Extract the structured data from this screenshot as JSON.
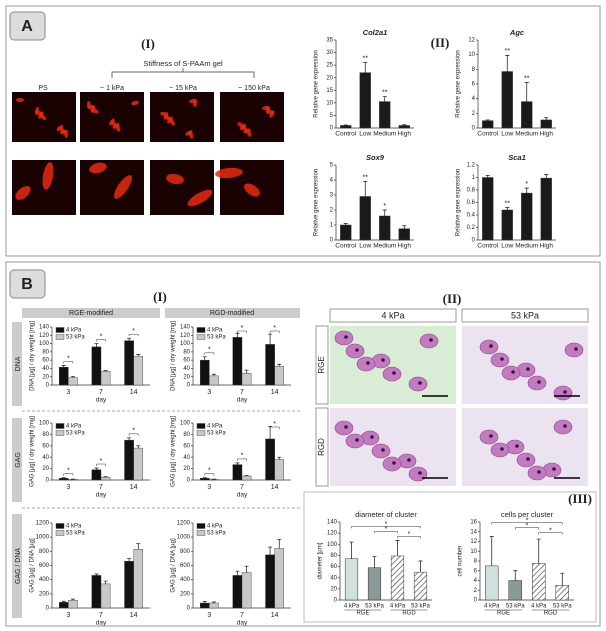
{
  "panels": {
    "A": {
      "label": "A",
      "part1": "(I)",
      "gel_title": "Stiffness of S-PAAm gel",
      "image_labels": [
        "PS",
        "~ 1 kPa",
        "~ 15 kPa",
        "~ 150 kPa"
      ],
      "part2": "(II)"
    },
    "B": {
      "label": "B",
      "part1": "(I)",
      "columns": [
        "RGE-modified",
        "RGD-modified"
      ],
      "rows": [
        "DNA",
        "GAG",
        "GAG / DNA"
      ],
      "part2": "(II)",
      "image_columns": [
        "4 kPa",
        "53 kPa"
      ],
      "image_rows": [
        "RGE",
        "RGD"
      ],
      "part3": "(III)"
    }
  },
  "chart_data": [
    {
      "type": "bar",
      "title": "Col2a1",
      "ylabel": "Relative gene expression",
      "categories": [
        "Control",
        "Low",
        "Medium",
        "High"
      ],
      "values": [
        1,
        22,
        10.5,
        1
      ],
      "errors": [
        0.2,
        4,
        2,
        0.3
      ],
      "annotations": [
        null,
        "**",
        "**",
        null
      ],
      "color": "#1a1a1a",
      "ylim": [
        0,
        35
      ],
      "yticks": [
        0,
        5,
        10,
        15,
        20,
        25,
        30,
        35
      ]
    },
    {
      "type": "bar",
      "title": "Agc",
      "ylabel": "Relative gene expression",
      "categories": [
        "Control",
        "Low",
        "Medium",
        "High"
      ],
      "values": [
        1,
        7.7,
        3.6,
        1.1
      ],
      "errors": [
        0.1,
        2.2,
        2.6,
        0.3
      ],
      "annotations": [
        null,
        "**",
        "**",
        null
      ],
      "color": "#1a1a1a",
      "ylim": [
        0,
        12
      ],
      "yticks": [
        0,
        2,
        4,
        6,
        8,
        10,
        12
      ]
    },
    {
      "type": "bar",
      "title": "Sox9",
      "ylabel": "Relative gene expression",
      "categories": [
        "Control",
        "Low",
        "Medium",
        "High"
      ],
      "values": [
        1,
        2.9,
        1.6,
        0.75
      ],
      "errors": [
        0.1,
        1,
        0.4,
        0.2
      ],
      "annotations": [
        null,
        "**",
        "*",
        null
      ],
      "color": "#1a1a1a",
      "ylim": [
        0,
        5
      ],
      "yticks": [
        0,
        1,
        2,
        3,
        4,
        5
      ]
    },
    {
      "type": "bar",
      "title": "Sca1",
      "ylabel": "Relative gene expression",
      "categories": [
        "Control",
        "Low",
        "Medium",
        "High"
      ],
      "values": [
        1,
        0.48,
        0.75,
        0.99
      ],
      "errors": [
        0.03,
        0.04,
        0.08,
        0.06
      ],
      "annotations": [
        null,
        "**",
        "*",
        null
      ],
      "color": "#1a1a1a",
      "ylim": [
        0,
        1.2
      ],
      "yticks": [
        0,
        0.2,
        0.4,
        0.6,
        0.8,
        1,
        1.2
      ]
    },
    {
      "type": "grouped_bar",
      "ylabel": "DNA [µg] / dry weight [mg]",
      "xlabel": "day",
      "categories": [
        "3",
        "7",
        "14"
      ],
      "series": [
        {
          "name": "4 kPa",
          "color": "#111111",
          "values": [
            43,
            92,
            107
          ],
          "errors": [
            4,
            8,
            6
          ]
        },
        {
          "name": "53 kPa",
          "color": "#c8c8c8",
          "values": [
            18,
            33,
            69
          ],
          "errors": [
            3,
            2,
            5
          ]
        }
      ],
      "significance": [
        "*",
        "*",
        "*"
      ],
      "ylim": [
        0,
        140
      ],
      "yticks": [
        0,
        20,
        40,
        60,
        80,
        100,
        120,
        140
      ]
    },
    {
      "type": "grouped_bar",
      "ylabel": "DNA [µg] / dry weight [mg]",
      "xlabel": "day",
      "categories": [
        "3",
        "7",
        "14"
      ],
      "series": [
        {
          "name": "4 kPa",
          "color": "#111111",
          "values": [
            60,
            115,
            98
          ],
          "errors": [
            8,
            10,
            25
          ]
        },
        {
          "name": "53 kPa",
          "color": "#c8c8c8",
          "values": [
            22,
            28,
            45
          ],
          "errors": [
            4,
            8,
            5
          ]
        }
      ],
      "significance": [
        "*",
        "*",
        "*"
      ],
      "ylim": [
        0,
        140
      ],
      "yticks": [
        0,
        20,
        40,
        60,
        80,
        100,
        120,
        140
      ]
    },
    {
      "type": "grouped_bar",
      "ylabel": "GAG [µg] / dry weight [mg]",
      "xlabel": "day",
      "categories": [
        "3",
        "7",
        "14"
      ],
      "series": [
        {
          "name": "4 kPa",
          "color": "#111111",
          "values": [
            3,
            18,
            70
          ],
          "errors": [
            1,
            3,
            4
          ]
        },
        {
          "name": "53 kPa",
          "color": "#c8c8c8",
          "values": [
            1,
            5,
            56
          ],
          "errors": [
            0.5,
            1,
            4
          ]
        }
      ],
      "significance": [
        "*",
        "*",
        "*"
      ],
      "ylim": [
        0,
        100
      ],
      "yticks": [
        0,
        20,
        40,
        60,
        80,
        100
      ]
    },
    {
      "type": "grouped_bar",
      "ylabel": "GAG [µg] / dry weight [mg]",
      "xlabel": "day",
      "categories": [
        "3",
        "7",
        "14"
      ],
      "series": [
        {
          "name": "4 kPa",
          "color": "#111111",
          "values": [
            3,
            27,
            72
          ],
          "errors": [
            1,
            3,
            22
          ]
        },
        {
          "name": "53 kPa",
          "color": "#c8c8c8",
          "values": [
            1,
            7,
            36
          ],
          "errors": [
            0.5,
            1,
            4
          ]
        }
      ],
      "significance": [
        "*",
        "*",
        "*"
      ],
      "ylim": [
        0,
        100
      ],
      "yticks": [
        0,
        20,
        40,
        60,
        80,
        100
      ]
    },
    {
      "type": "grouped_bar",
      "ylabel": "GAG [µg] / DNA [µg]",
      "xlabel": "day",
      "categories": [
        "3",
        "7",
        "14"
      ],
      "series": [
        {
          "name": "4 kPa",
          "color": "#111111",
          "values": [
            80,
            460,
            660
          ],
          "errors": [
            15,
            20,
            40
          ]
        },
        {
          "name": "53 kPa",
          "color": "#c8c8c8",
          "values": [
            110,
            340,
            830
          ],
          "errors": [
            15,
            40,
            80
          ]
        }
      ],
      "ylim": [
        0,
        1200
      ],
      "yticks": [
        0,
        200,
        400,
        600,
        800,
        1000,
        1200
      ]
    },
    {
      "type": "grouped_bar",
      "ylabel": "GAG [µg] / DNA [µg]",
      "xlabel": "day",
      "categories": [
        "3",
        "7",
        "14"
      ],
      "series": [
        {
          "name": "4 kPa",
          "color": "#111111",
          "values": [
            70,
            460,
            750
          ],
          "errors": [
            20,
            60,
            110
          ]
        },
        {
          "name": "53 kPa",
          "color": "#c8c8c8",
          "values": [
            70,
            500,
            840
          ],
          "errors": [
            15,
            90,
            130
          ]
        }
      ],
      "ylim": [
        0,
        1200
      ],
      "yticks": [
        0,
        200,
        400,
        600,
        800,
        1000,
        1200
      ]
    },
    {
      "type": "bar",
      "title": "diameter of cluster",
      "ylabel": "diameter [µm]",
      "categories": [
        "4 kPa",
        "53 kPa",
        "4 kPa",
        "53 kPa"
      ],
      "groups": [
        "RGE",
        "RGD"
      ],
      "values": [
        74,
        58,
        79,
        50
      ],
      "errors": [
        30,
        20,
        28,
        20
      ],
      "colors": [
        "#cfe0de",
        "#8a9a98",
        "#ffffff",
        "#8a9a98"
      ],
      "hatched": [
        false,
        false,
        true,
        true
      ],
      "significance": [
        {
          "label": "*",
          "bars": [
            2,
            3
          ]
        },
        {
          "label": "*",
          "bars": [
            1,
            2
          ]
        },
        {
          "label": "*",
          "bars": [
            0,
            3
          ]
        }
      ],
      "ylim": [
        0,
        140
      ],
      "yticks": [
        0,
        20,
        40,
        60,
        80,
        100,
        120,
        140
      ]
    },
    {
      "type": "bar",
      "title": "cells per cluster",
      "ylabel": "cell number",
      "categories": [
        "4 kPa",
        "53 kPa",
        "4 kPa",
        "53 kPa"
      ],
      "groups": [
        "RGE",
        "RGD"
      ],
      "values": [
        7,
        4,
        7.5,
        3
      ],
      "errors": [
        6,
        2,
        5,
        2.5
      ],
      "colors": [
        "#cfe0de",
        "#8a9a98",
        "#ffffff",
        "#8a9a98"
      ],
      "hatched": [
        false,
        false,
        true,
        true
      ],
      "significance": [
        {
          "label": "*",
          "bars": [
            2,
            3
          ]
        },
        {
          "label": "*",
          "bars": [
            1,
            2
          ]
        },
        {
          "label": "*",
          "bars": [
            0,
            3
          ]
        }
      ],
      "ylim": [
        0,
        16
      ],
      "yticks": [
        0,
        2,
        4,
        6,
        8,
        10,
        12,
        14,
        16
      ]
    }
  ]
}
